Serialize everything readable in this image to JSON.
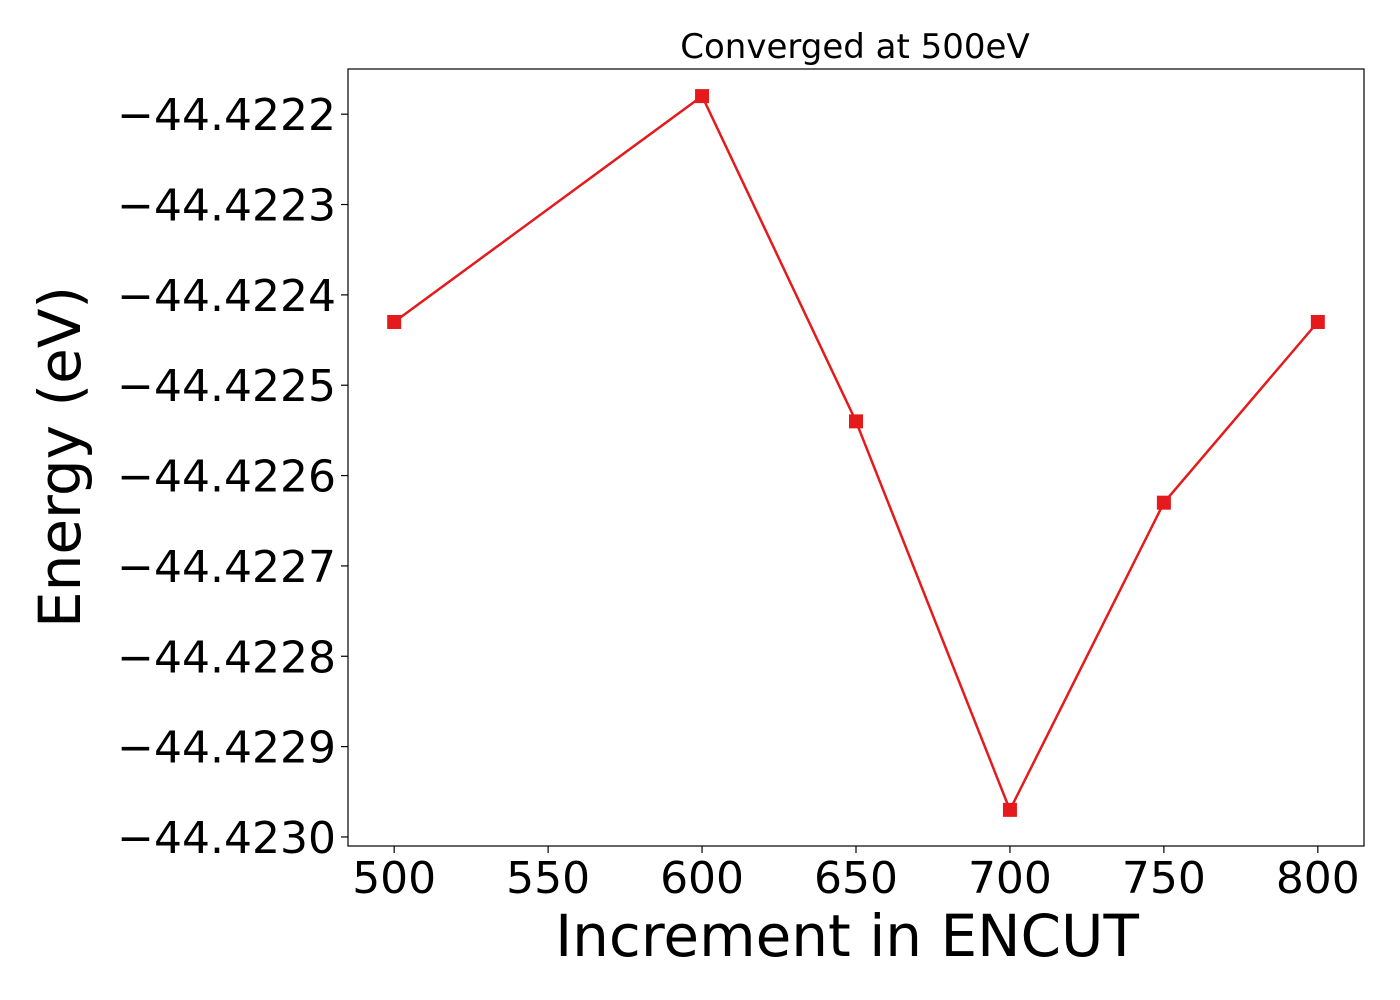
{
  "chart_data": {
    "type": "line",
    "title": "Converged at 500eV",
    "xlabel": "Increment in ENCUT",
    "ylabel": "Energy (eV)",
    "x": [
      500,
      600,
      650,
      700,
      750,
      800
    ],
    "series": [
      {
        "values": [
          -44.42243,
          -44.42218,
          -44.42254,
          -44.42297,
          -44.42263,
          -44.42243
        ],
        "color": "#e41a1c",
        "marker": "square"
      }
    ],
    "xlim": [
      485,
      815
    ],
    "ylim": [
      -44.42301,
      -44.42215
    ],
    "xticks": [
      500,
      550,
      600,
      650,
      700,
      750,
      800
    ],
    "xtick_labels": [
      "500",
      "550",
      "600",
      "650",
      "700",
      "750",
      "800"
    ],
    "yticks": [
      -44.4222,
      -44.4223,
      -44.4224,
      -44.4225,
      -44.4226,
      -44.4227,
      -44.4228,
      -44.4229,
      -44.423
    ],
    "ytick_labels": [
      "−44.4222",
      "−44.4223",
      "−44.4224",
      "−44.4225",
      "−44.4226",
      "−44.4227",
      "−44.4228",
      "−44.4229",
      "−44.4230"
    ],
    "grid": false,
    "legend": "none"
  }
}
